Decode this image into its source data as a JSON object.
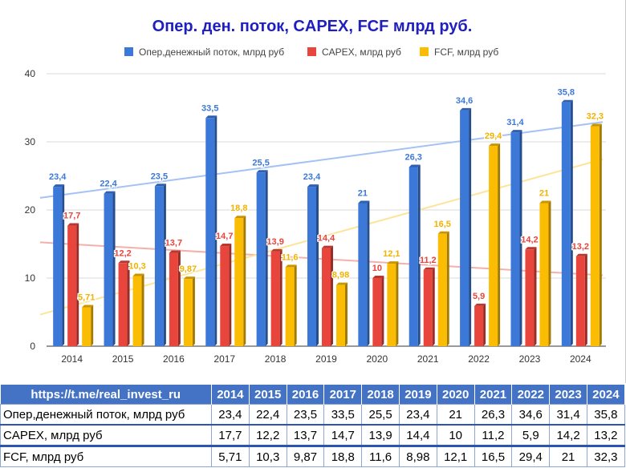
{
  "chart_data": {
    "type": "bar",
    "title": "Опер. ден. поток, CAPEX, FCF млрд руб.",
    "categories": [
      "2014",
      "2015",
      "2016",
      "2017",
      "2018",
      "2019",
      "2020",
      "2021",
      "2022",
      "2023",
      "2024"
    ],
    "series": [
      {
        "name": "Опер,денежный поток, млрд руб",
        "color": "#3c78d8",
        "values": [
          23.4,
          22.4,
          23.5,
          33.5,
          25.5,
          23.4,
          21,
          26.3,
          34.6,
          31.4,
          35.8
        ],
        "labels": [
          "23,4",
          "22,4",
          "23,5",
          "33,5",
          "25,5",
          "23,4",
          "21",
          "26,3",
          "34,6",
          "31,4",
          "35,8"
        ]
      },
      {
        "name": "CAPEX, млрд руб",
        "color": "#e8453c",
        "values": [
          17.7,
          12.2,
          13.7,
          14.7,
          13.9,
          14.4,
          10,
          11.2,
          5.9,
          14.2,
          13.2
        ],
        "labels": [
          "17,7",
          "12,2",
          "13,7",
          "14,7",
          "13,9",
          "14,4",
          "10",
          "11,2",
          "5,9",
          "14,2",
          "13,2"
        ]
      },
      {
        "name": "FCF, млрд руб",
        "color": "#fbbc04",
        "values": [
          5.71,
          10.3,
          9.87,
          18.8,
          11.6,
          8.98,
          12.1,
          16.5,
          29.4,
          21,
          32.3
        ],
        "labels": [
          "5,71",
          "10,3",
          "9,87",
          "18,8",
          "11,6",
          "8,98",
          "12,1",
          "16,5",
          "29,4",
          "21",
          "32,3"
        ]
      }
    ],
    "trendlines": true,
    "ylim": [
      0,
      40
    ],
    "yticks": [
      0,
      10,
      20,
      30,
      40
    ],
    "grid": true,
    "legend": "top"
  },
  "table": {
    "header": "https://t.me/real_invest_ru",
    "years": [
      "2014",
      "2015",
      "2016",
      "2017",
      "2018",
      "2019",
      "2020",
      "2021",
      "2022",
      "2023",
      "2024"
    ],
    "rows": [
      {
        "label": "Опер,денежный поток, млрд руб",
        "values": [
          "23,4",
          "22,4",
          "23,5",
          "33,5",
          "25,5",
          "23,4",
          "21",
          "26,3",
          "34,6",
          "31,4",
          "35,8"
        ]
      },
      {
        "label": "CAPEX, млрд руб",
        "values": [
          "17,7",
          "12,2",
          "13,7",
          "14,7",
          "13,9",
          "14,4",
          "10",
          "11,2",
          "5,9",
          "14,2",
          "13,2"
        ]
      },
      {
        "label": "FCF, млрд руб",
        "values": [
          "5,71",
          "10,3",
          "9,87",
          "18,8",
          "11,6",
          "8,98",
          "12,1",
          "16,5",
          "29,4",
          "21",
          "32,3"
        ]
      }
    ]
  }
}
